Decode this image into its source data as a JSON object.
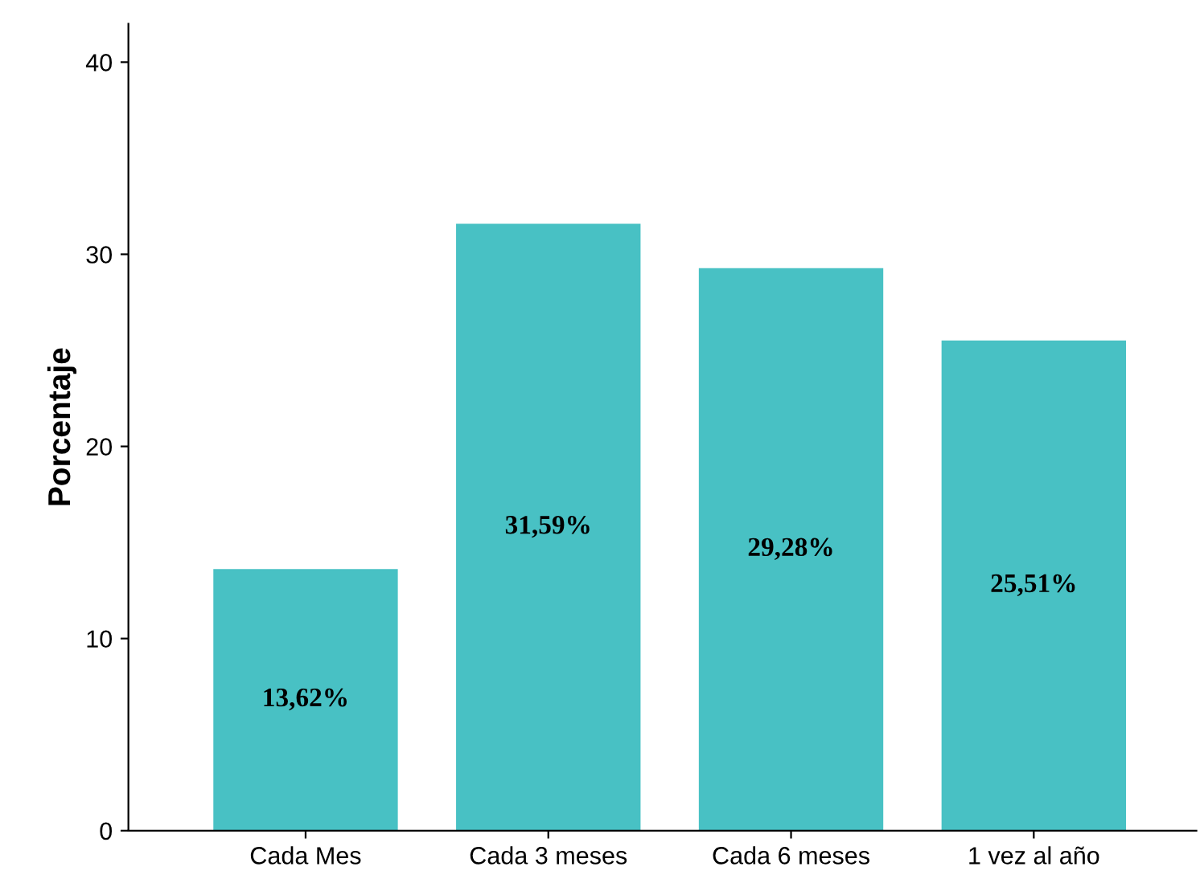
{
  "chart_data": {
    "type": "bar",
    "ylabel": "Porcentaje",
    "categories": [
      "Cada Mes",
      "Cada 3 meses",
      "Cada 6 meses",
      "1 vez al año"
    ],
    "values": [
      13.62,
      31.59,
      29.28,
      25.51
    ],
    "value_labels": [
      "13,62%",
      "31,59%",
      "29,28%",
      "25,51%"
    ],
    "color": "#48c1c4",
    "ylim": [
      0,
      42
    ],
    "yticks": [
      0,
      10,
      20,
      30,
      40
    ],
    "grid": false
  }
}
